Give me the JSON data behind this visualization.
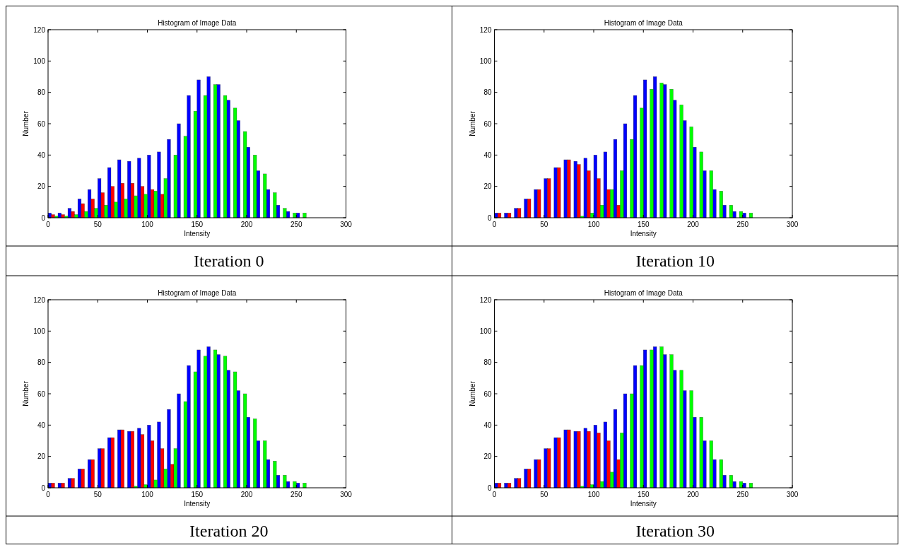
{
  "chart_data": [
    {
      "type": "histogram",
      "title": "Histogram of Image Data",
      "xlabel": "Intensity",
      "ylabel": "Number",
      "annotations": [
        "Iteration 0"
      ],
      "bins": [
        0,
        10,
        20,
        30,
        40,
        50,
        60,
        70,
        80,
        90,
        100,
        110,
        120,
        130,
        140,
        150,
        160,
        170,
        180,
        190,
        200,
        210,
        220,
        230,
        240,
        250,
        260
      ],
      "xlim": [
        0,
        300
      ],
      "xticks": [
        0,
        50,
        100,
        150,
        200,
        250,
        300
      ],
      "ylim": [
        0,
        120
      ],
      "yticks": [
        0,
        20,
        40,
        60,
        80,
        100,
        120
      ],
      "grid": false,
      "series": [
        {
          "color": "#0000ff",
          "values": [
            3,
            3,
            6,
            12,
            18,
            25,
            32,
            37,
            36,
            38,
            40,
            42,
            50,
            60,
            78,
            88,
            90,
            85,
            75,
            62,
            45,
            30,
            18,
            8,
            4,
            3
          ]
        },
        {
          "color": "#ff0000",
          "values": [
            2,
            2,
            4,
            9,
            12,
            16,
            20,
            22,
            22,
            20,
            18,
            15,
            0,
            0,
            0,
            0,
            0,
            0,
            0,
            0,
            0,
            0,
            0,
            0,
            0,
            0
          ]
        },
        {
          "color": "#00ff00",
          "values": [
            1,
            1,
            2,
            4,
            6,
            8,
            10,
            12,
            14,
            15,
            17,
            25,
            40,
            52,
            68,
            78,
            85,
            78,
            70,
            55,
            40,
            28,
            16,
            6,
            3,
            3
          ]
        }
      ]
    },
    {
      "type": "histogram",
      "title": "Histogram of Image Data",
      "xlabel": "Intensity",
      "ylabel": "Number",
      "annotations": [
        "Iteration 10"
      ],
      "bins": [
        0,
        10,
        20,
        30,
        40,
        50,
        60,
        70,
        80,
        90,
        100,
        110,
        120,
        130,
        140,
        150,
        160,
        170,
        180,
        190,
        200,
        210,
        220,
        230,
        240,
        250,
        260
      ],
      "xlim": [
        0,
        300
      ],
      "xticks": [
        0,
        50,
        100,
        150,
        200,
        250,
        300
      ],
      "ylim": [
        0,
        120
      ],
      "yticks": [
        0,
        20,
        40,
        60,
        80,
        100,
        120
      ],
      "grid": false,
      "series": [
        {
          "color": "#0000ff",
          "values": [
            3,
            3,
            6,
            12,
            18,
            25,
            32,
            37,
            36,
            38,
            40,
            42,
            50,
            60,
            78,
            88,
            90,
            85,
            75,
            62,
            45,
            30,
            18,
            8,
            4,
            3
          ]
        },
        {
          "color": "#ff0000",
          "values": [
            3,
            3,
            6,
            12,
            18,
            25,
            32,
            37,
            34,
            30,
            25,
            18,
            8,
            0,
            0,
            0,
            0,
            0,
            0,
            0,
            0,
            0,
            0,
            0,
            0,
            0
          ]
        },
        {
          "color": "#00ff00",
          "values": [
            0,
            0,
            0,
            0,
            0,
            0,
            0,
            0,
            1,
            3,
            8,
            18,
            30,
            50,
            70,
            82,
            86,
            82,
            72,
            58,
            42,
            30,
            17,
            8,
            4,
            3
          ]
        }
      ]
    },
    {
      "type": "histogram",
      "title": "Histogram of Image Data",
      "xlabel": "Intensity",
      "ylabel": "Number",
      "annotations": [
        "Iteration 20"
      ],
      "bins": [
        0,
        10,
        20,
        30,
        40,
        50,
        60,
        70,
        80,
        90,
        100,
        110,
        120,
        130,
        140,
        150,
        160,
        170,
        180,
        190,
        200,
        210,
        220,
        230,
        240,
        250,
        260
      ],
      "xlim": [
        0,
        300
      ],
      "xticks": [
        0,
        50,
        100,
        150,
        200,
        250,
        300
      ],
      "ylim": [
        0,
        120
      ],
      "yticks": [
        0,
        20,
        40,
        60,
        80,
        100,
        120
      ],
      "grid": false,
      "series": [
        {
          "color": "#0000ff",
          "values": [
            3,
            3,
            6,
            12,
            18,
            25,
            32,
            37,
            36,
            38,
            40,
            42,
            50,
            60,
            78,
            88,
            90,
            85,
            75,
            62,
            45,
            30,
            18,
            8,
            4,
            3
          ]
        },
        {
          "color": "#ff0000",
          "values": [
            3,
            3,
            6,
            12,
            18,
            25,
            32,
            37,
            36,
            34,
            30,
            25,
            15,
            0,
            0,
            0,
            0,
            0,
            0,
            0,
            0,
            0,
            0,
            0,
            0,
            0
          ]
        },
        {
          "color": "#00ff00",
          "values": [
            0,
            0,
            0,
            0,
            0,
            0,
            0,
            0,
            1,
            2,
            5,
            12,
            25,
            55,
            74,
            84,
            88,
            84,
            74,
            60,
            44,
            30,
            17,
            8,
            4,
            3
          ]
        }
      ]
    },
    {
      "type": "histogram",
      "title": "Histogram of Image Data",
      "xlabel": "Intensity",
      "ylabel": "Number",
      "annotations": [
        "Iteration 30"
      ],
      "bins": [
        0,
        10,
        20,
        30,
        40,
        50,
        60,
        70,
        80,
        90,
        100,
        110,
        120,
        130,
        140,
        150,
        160,
        170,
        180,
        190,
        200,
        210,
        220,
        230,
        240,
        250,
        260
      ],
      "xlim": [
        0,
        300
      ],
      "xticks": [
        0,
        50,
        100,
        150,
        200,
        250,
        300
      ],
      "ylim": [
        0,
        120
      ],
      "yticks": [
        0,
        20,
        40,
        60,
        80,
        100,
        120
      ],
      "grid": false,
      "series": [
        {
          "color": "#0000ff",
          "values": [
            3,
            3,
            6,
            12,
            18,
            25,
            32,
            37,
            36,
            38,
            40,
            42,
            50,
            60,
            78,
            88,
            90,
            85,
            75,
            62,
            45,
            30,
            18,
            8,
            4,
            3
          ]
        },
        {
          "color": "#ff0000",
          "values": [
            3,
            3,
            6,
            12,
            18,
            25,
            32,
            37,
            36,
            36,
            35,
            30,
            18,
            0,
            0,
            0,
            0,
            0,
            0,
            0,
            0,
            0,
            0,
            0,
            0,
            0
          ]
        },
        {
          "color": "#00ff00",
          "values": [
            0,
            0,
            0,
            0,
            0,
            0,
            0,
            0,
            1,
            2,
            4,
            10,
            35,
            60,
            78,
            88,
            90,
            85,
            75,
            62,
            45,
            30,
            18,
            8,
            4,
            3
          ]
        }
      ]
    }
  ]
}
